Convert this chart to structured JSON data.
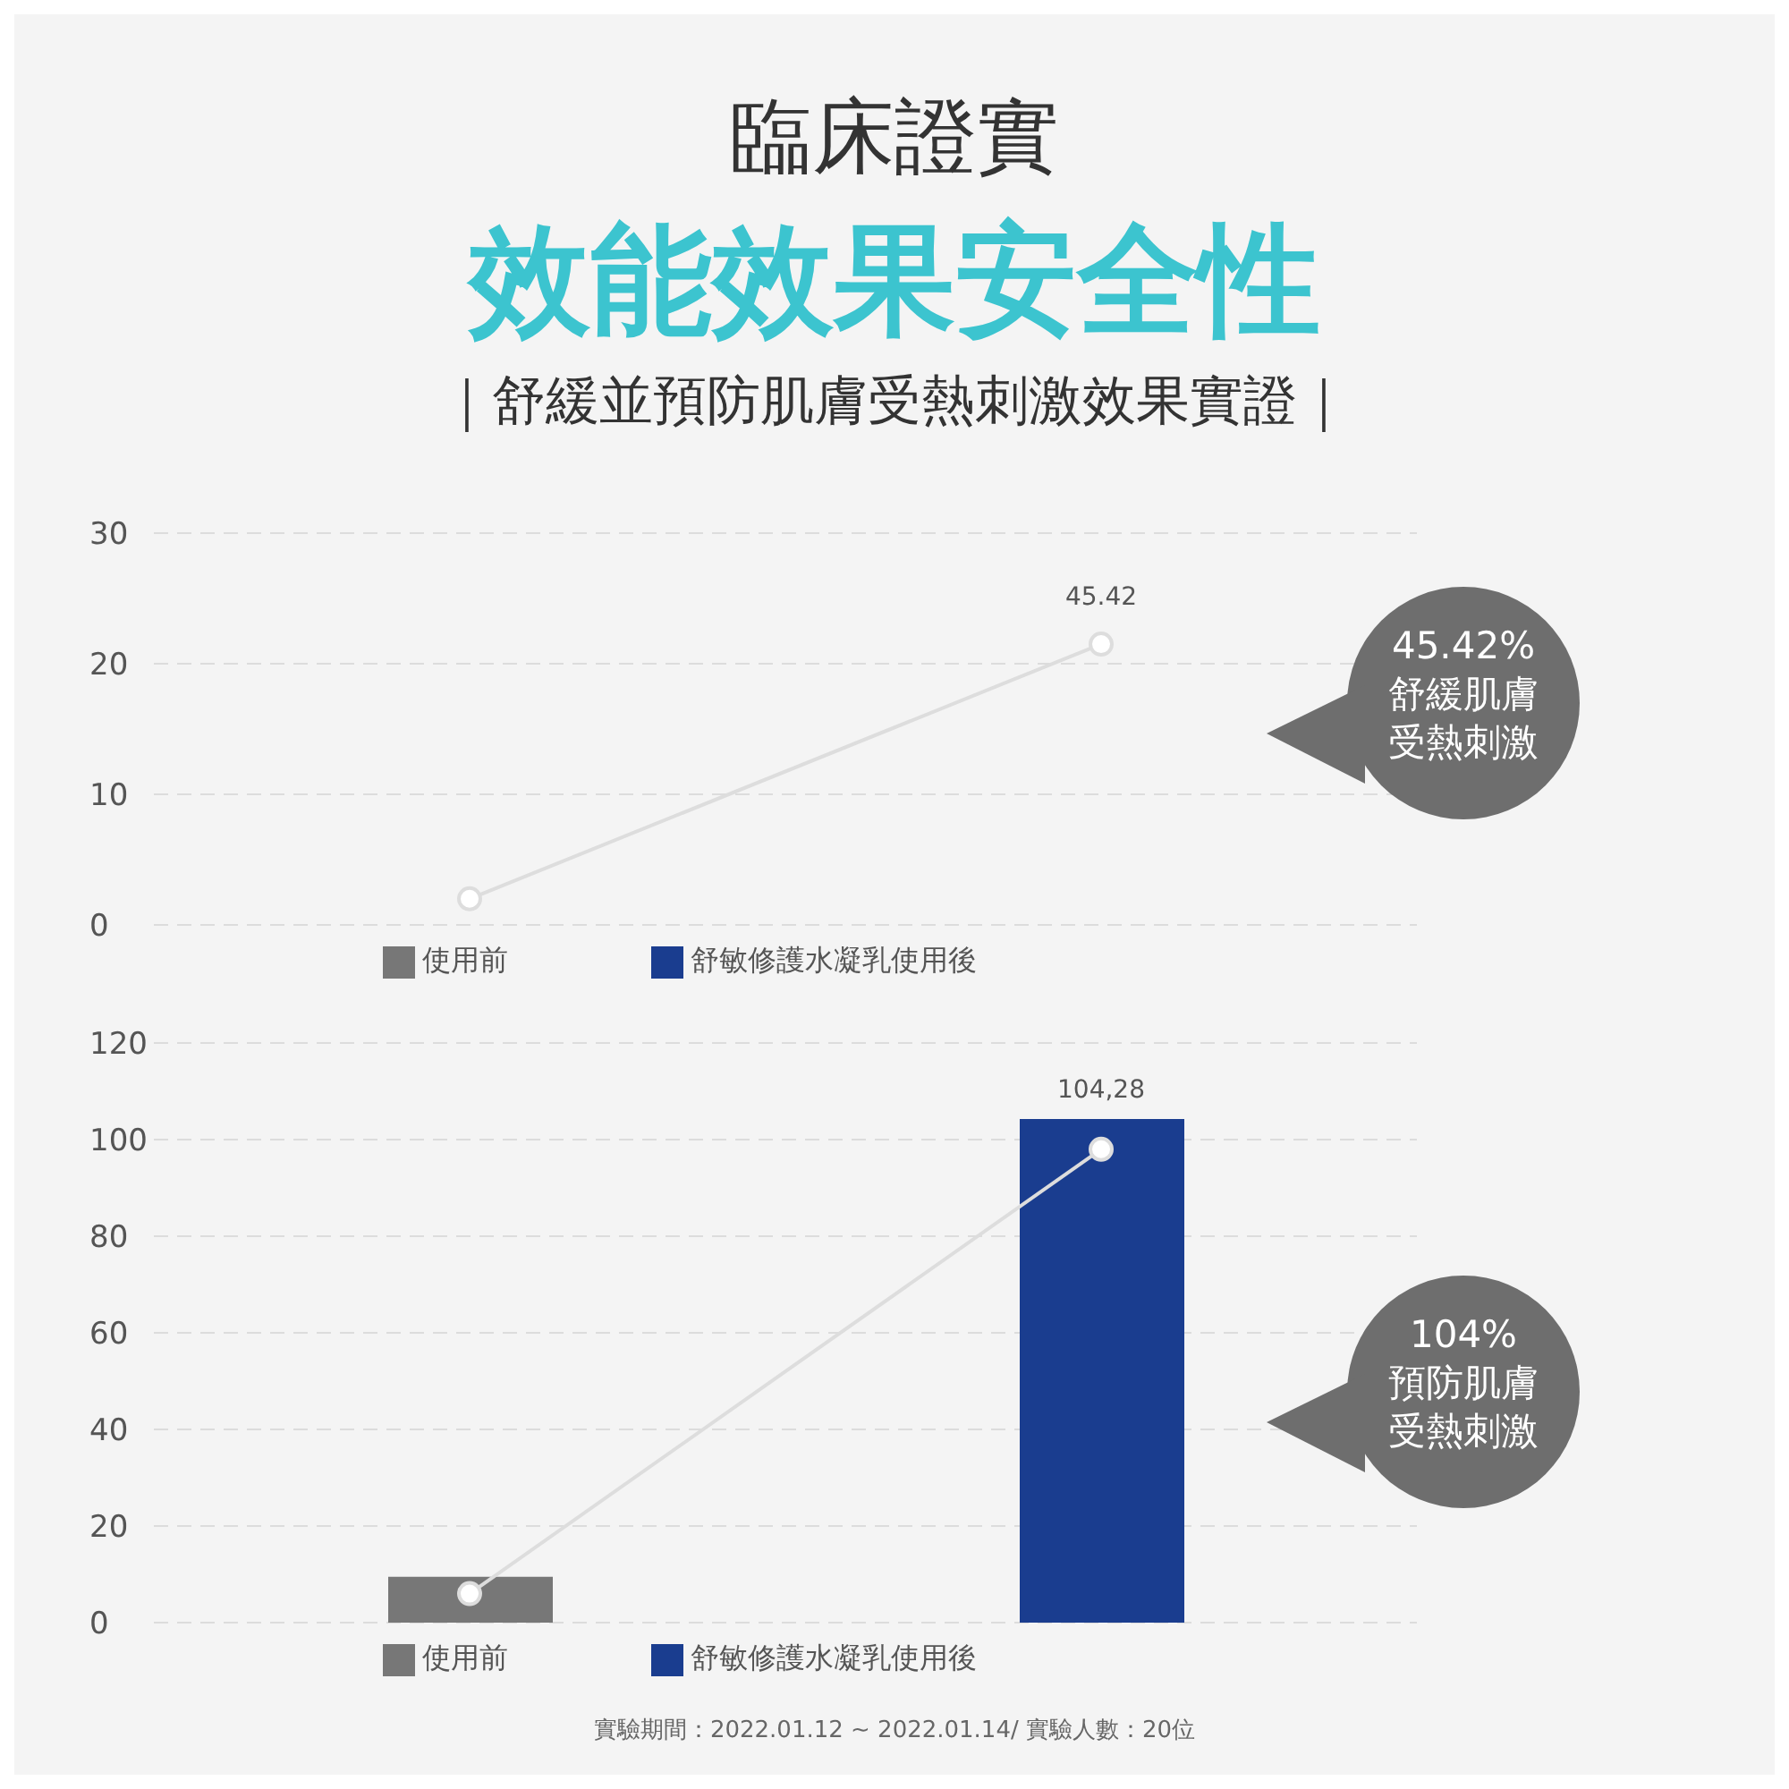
{
  "chart_data": [
    {
      "type": "line",
      "title": "臨床證實",
      "subtitle": "效能效果安全性",
      "categories": [
        null,
        null
      ],
      "series": [
        {
          "name": "使用前",
          "type": "bar",
          "color": "#777777",
          "values": [
            null,
            null
          ]
        },
        {
          "name": "舒敏修護水凝乳使用後",
          "type": "bar",
          "color": "#1a3d8f",
          "values": [
            null,
            null
          ]
        },
        {
          "color": "#dddddd",
          "values": [
            2,
            21.5
          ]
        }
      ],
      "ylim": [
        0,
        30
      ],
      "yticks": [
        0,
        10,
        20,
        30
      ],
      "grid": "y",
      "legend": "bottom",
      "marker": "circle",
      "line_style": "solid",
      "annotations": [
        "｜舒緩並預防肌膚受熱刺激效果實證｜",
        {
          "text": "45.42",
          "y": 21.5
        },
        "45.42%\n舒緩肌膚受熱刺激"
      ]
    },
    {
      "type": "bar",
      "categories": [
        null,
        null
      ],
      "series": [
        {
          "name": "使用前",
          "color": "#777777",
          "values": [
            9.5,
            null
          ]
        },
        {
          "name": "舒敏修護水凝乳使用後",
          "color": "#1a3d8f",
          "values": [
            null,
            104.28
          ]
        },
        {
          "type": "line",
          "color": "#dddddd",
          "values": [
            6,
            98
          ]
        }
      ],
      "ylim": [
        0,
        120
      ],
      "yticks": [
        0,
        20,
        40,
        60,
        80,
        100,
        120
      ],
      "grid": "y",
      "legend": "bottom",
      "marker": "circle",
      "line_style": "solid",
      "annotations": [
        {
          "text": "104,28",
          "y": 104.28
        },
        "104%\n預防肌膚受熱刺激",
        "實驗期間：2022.01.12 ~ 2022.01.14/ 實驗人數：20位"
      ]
    }
  ]
}
